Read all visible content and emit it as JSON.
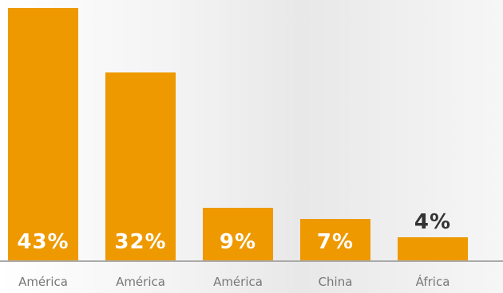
{
  "chart_data": {
    "type": "bar",
    "categories": [
      "América",
      "América",
      "América",
      "China",
      "África"
    ],
    "values": [
      43,
      32,
      9,
      7,
      4
    ],
    "value_labels": [
      "43%",
      "32%",
      "9%",
      "7%",
      "4%"
    ],
    "ylim": [
      0,
      43
    ],
    "grid": false,
    "legend": "none",
    "colors": {
      "bar": "#EE9900",
      "label_inside": "#ffffff",
      "label_above": "#333333",
      "baseline": "#aaaaaa",
      "category_text": "#777777"
    }
  }
}
